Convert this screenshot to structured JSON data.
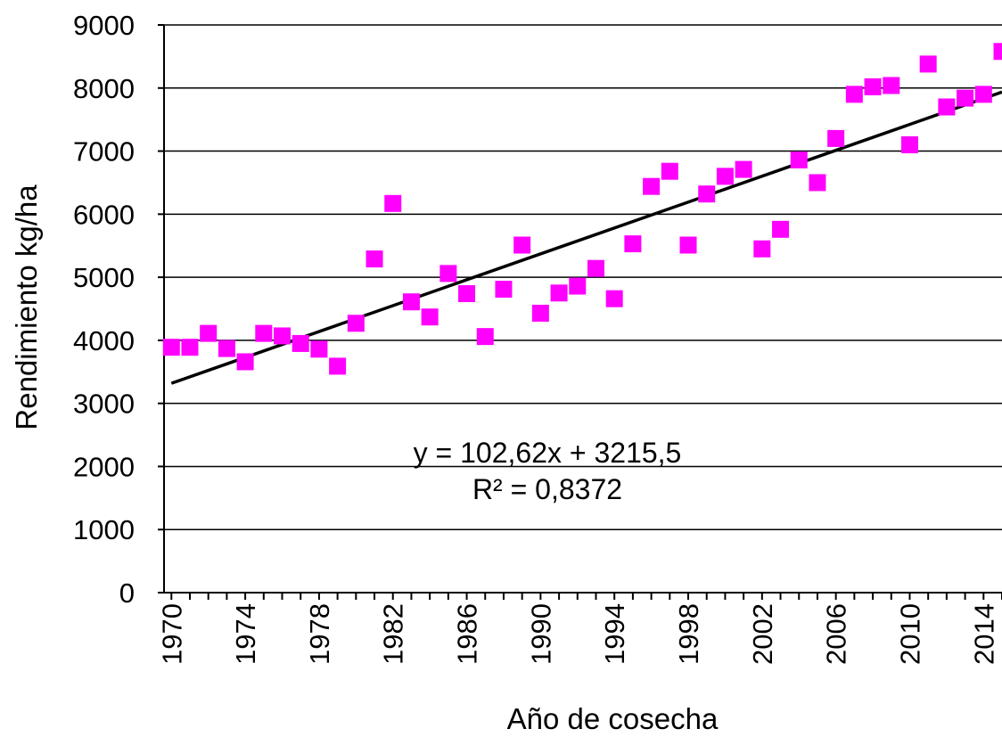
{
  "chart_data": {
    "type": "scatter",
    "title": "",
    "xlabel": "Año de cosecha",
    "ylabel": "Rendimiento kg/ha",
    "xlim": [
      1970,
      2015
    ],
    "ylim": [
      0,
      9000
    ],
    "x_ticks": [
      "1970",
      "1974",
      "1978",
      "1982",
      "1986",
      "1990",
      "1994",
      "1998",
      "2002",
      "2006",
      "2010",
      "2014"
    ],
    "y_ticks": [
      "0",
      "1000",
      "2000",
      "3000",
      "4000",
      "5000",
      "6000",
      "7000",
      "8000",
      "9000"
    ],
    "grid": "horizontal",
    "marker_color": "#ff00ff",
    "trend_color": "#000000",
    "points": {
      "x": [
        1970,
        1971,
        1972,
        1973,
        1974,
        1975,
        1976,
        1977,
        1978,
        1979,
        1980,
        1981,
        1982,
        1983,
        1984,
        1985,
        1986,
        1987,
        1988,
        1989,
        1990,
        1991,
        1992,
        1993,
        1994,
        1995,
        1996,
        1997,
        1998,
        1999,
        2000,
        2001,
        2002,
        2003,
        2004,
        2005,
        2006,
        2007,
        2008,
        2009,
        2010,
        2011,
        2012,
        2013,
        2014,
        2015
      ],
      "y": [
        3890,
        3890,
        4110,
        3870,
        3660,
        4110,
        4070,
        3950,
        3860,
        3590,
        4270,
        5290,
        6170,
        4610,
        4370,
        5060,
        4740,
        4060,
        4810,
        5510,
        4430,
        4750,
        4860,
        5140,
        4660,
        5530,
        6440,
        6680,
        5510,
        6320,
        6600,
        6710,
        5450,
        5760,
        6860,
        6500,
        7200,
        7900,
        8020,
        8040,
        7100,
        8380,
        7700,
        7840,
        7900,
        8580
      ]
    },
    "trendline": {
      "equation": "y = 102,62x + 3215,5",
      "r2": "R² = 0,8372",
      "slope": 102.62,
      "intercept": 3215.5
    }
  }
}
